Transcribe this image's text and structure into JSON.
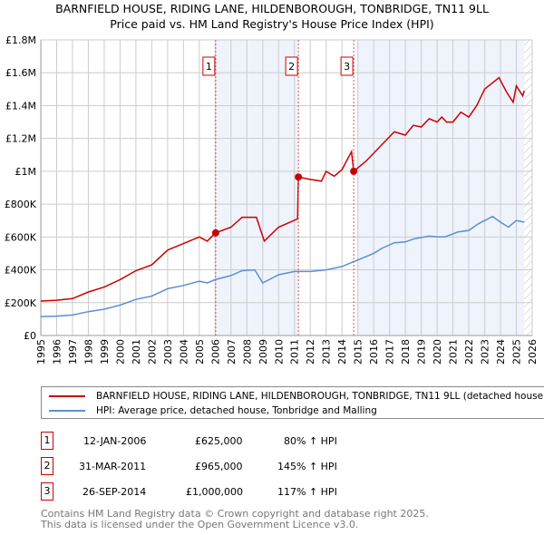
{
  "title_line1": "BARNFIELD HOUSE, RIDING LANE, HILDENBOROUGH, TONBRIDGE, TN11 9LL",
  "title_line2": "Price paid vs. HM Land Registry's House Price Index (HPI)",
  "legend": {
    "series1": "BARNFIELD HOUSE, RIDING LANE, HILDENBOROUGH, TONBRIDGE, TN11 9LL (detached house)",
    "series2": "HPI: Average price, detached house, Tonbridge and Malling"
  },
  "sales": [
    {
      "num": "1",
      "date": "12-JAN-2006",
      "price": "£625,000",
      "hpi": "80% ↑ HPI"
    },
    {
      "num": "2",
      "date": "31-MAR-2011",
      "price": "£965,000",
      "hpi": "145% ↑ HPI"
    },
    {
      "num": "3",
      "date": "26-SEP-2014",
      "price": "£1,000,000",
      "hpi": "117% ↑ HPI"
    }
  ],
  "footer": {
    "line1": "Contains HM Land Registry data © Crown copyright and database right 2025.",
    "line2": "This data is licensed under the Open Government Licence v3.0."
  },
  "chart_data": {
    "type": "line",
    "xlim": [
      1995,
      2026
    ],
    "ylim": [
      0,
      1800000
    ],
    "ytick_values": [
      0,
      200000,
      400000,
      600000,
      800000,
      1000000,
      1200000,
      1400000,
      1600000,
      1800000
    ],
    "ytick_labels": [
      "£0",
      "£200K",
      "£400K",
      "£600K",
      "£800K",
      "£1M",
      "£1.2M",
      "£1.4M",
      "£1.6M",
      "£1.8M"
    ],
    "xtick_labels": [
      "1995",
      "1996",
      "1997",
      "1998",
      "1999",
      "2000",
      "2001",
      "2002",
      "2003",
      "2004",
      "2005",
      "2006",
      "2007",
      "2008",
      "2009",
      "2010",
      "2011",
      "2012",
      "2013",
      "2014",
      "2015",
      "2016",
      "2017",
      "2018",
      "2019",
      "2020",
      "2021",
      "2022",
      "2023",
      "2024",
      "2025",
      "2026"
    ],
    "colors": {
      "property": "#cc0000",
      "hpi": "#5b8fd4",
      "shade": "#eef3fc"
    },
    "shaded_ranges": [
      [
        2006.03,
        2011.25
      ],
      [
        2015.0,
        2025.5
      ]
    ],
    "hatch_from": 2025.5,
    "markers": [
      {
        "label": "1",
        "x": 2006.03,
        "y": 625000
      },
      {
        "label": "2",
        "x": 2011.25,
        "y": 965000
      },
      {
        "label": "3",
        "x": 2014.74,
        "y": 1000000
      }
    ],
    "series": [
      {
        "name": "property",
        "x": [
          1995,
          1996,
          1997,
          1998,
          1999,
          2000,
          2001,
          2002,
          2003,
          2004,
          2005,
          2005.5,
          2006.03,
          2007,
          2007.7,
          2008.3,
          2008.6,
          2009.1,
          2010,
          2011.2,
          2011.25,
          2012,
          2012.7,
          2013,
          2013.5,
          2014,
          2014.6,
          2014.74,
          2015.5,
          2016.5,
          2017.3,
          2018,
          2018.5,
          2019,
          2019.5,
          2020,
          2020.3,
          2020.6,
          2021,
          2021.5,
          2022,
          2022.5,
          2023,
          2023.9,
          2024.4,
          2024.8,
          2025,
          2025.4,
          2025.5
        ],
        "values": [
          210000,
          215000,
          225000,
          265000,
          295000,
          340000,
          395000,
          430000,
          520000,
          560000,
          600000,
          575000,
          625000,
          660000,
          720000,
          720000,
          720000,
          575000,
          660000,
          710000,
          965000,
          950000,
          940000,
          1000000,
          970000,
          1010000,
          1120000,
          1000000,
          1060000,
          1160000,
          1240000,
          1220000,
          1280000,
          1270000,
          1320000,
          1300000,
          1330000,
          1300000,
          1300000,
          1360000,
          1330000,
          1400000,
          1500000,
          1570000,
          1480000,
          1420000,
          1520000,
          1460000,
          1490000
        ]
      },
      {
        "name": "hpi",
        "x": [
          1995,
          1996,
          1997,
          1998,
          1999,
          2000,
          2001,
          2002,
          2003,
          2004,
          2005,
          2005.5,
          2006,
          2007,
          2007.7,
          2008.5,
          2009,
          2010,
          2011,
          2012,
          2013,
          2014,
          2015,
          2016,
          2016.5,
          2017.3,
          2018,
          2018.6,
          2019.5,
          2020,
          2020.5,
          2021.3,
          2022,
          2022.6,
          2023.5,
          2024,
          2024.5,
          2025,
          2025.5
        ],
        "values": [
          115000,
          118000,
          125000,
          145000,
          160000,
          185000,
          220000,
          240000,
          285000,
          305000,
          330000,
          320000,
          340000,
          365000,
          395000,
          400000,
          320000,
          370000,
          390000,
          390000,
          400000,
          420000,
          460000,
          500000,
          530000,
          565000,
          570000,
          590000,
          605000,
          600000,
          600000,
          630000,
          640000,
          680000,
          725000,
          690000,
          660000,
          700000,
          690000
        ]
      }
    ]
  }
}
